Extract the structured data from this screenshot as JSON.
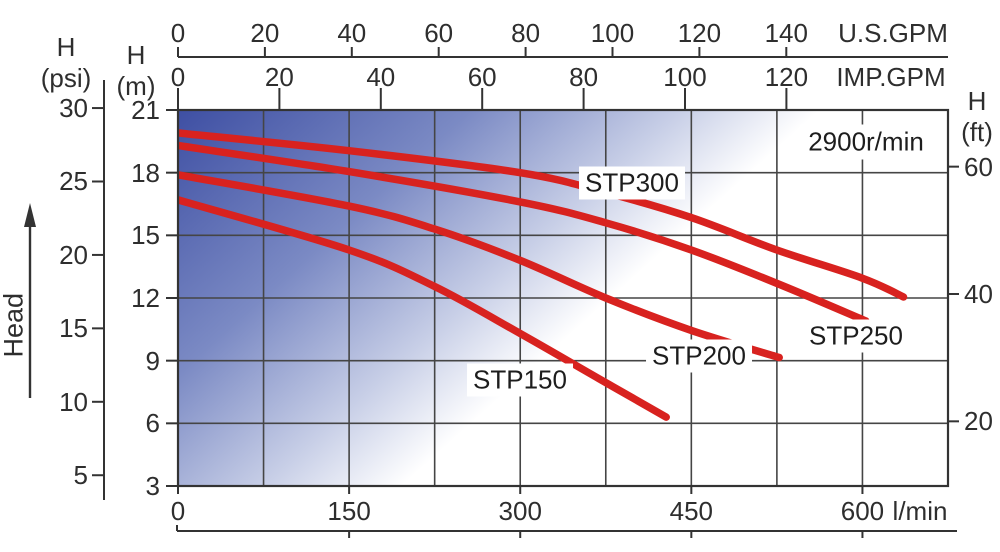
{
  "annotation": {
    "speed": "2900r/min"
  },
  "axes": {
    "us_gpm": {
      "label": "U.S.GPM",
      "ticks": [
        0,
        20,
        40,
        60,
        80,
        100,
        120,
        140
      ]
    },
    "imp_gpm": {
      "label": "IMP.GPM",
      "ticks": [
        0,
        20,
        40,
        60,
        80,
        100,
        120
      ]
    },
    "flow_lmin": {
      "label": "l/min",
      "ticks": [
        0,
        150,
        300,
        450,
        600
      ]
    },
    "head_m": {
      "symbol": "H",
      "unit": "(m)",
      "ticks": [
        21,
        18,
        15,
        12,
        9,
        6,
        3
      ]
    },
    "head_psi": {
      "symbol": "H",
      "unit": "(psi)",
      "ticks": [
        30,
        25,
        20,
        15,
        10,
        5
      ]
    },
    "head_ft": {
      "symbol": "H",
      "unit": "(ft)",
      "ticks": [
        60,
        40,
        20
      ]
    },
    "head_arrow_label": "Head"
  },
  "chart_data": {
    "type": "line",
    "title": "",
    "annotations": [
      "2900r/min"
    ],
    "x_axis": {
      "unit": "l/min",
      "range": [
        0,
        675
      ],
      "ticks": [
        0,
        150,
        300,
        450,
        600
      ],
      "gridline_step": 75
    },
    "x_axis_secondary": [
      {
        "unit": "U.S.GPM",
        "ticks": [
          0,
          20,
          40,
          60,
          80,
          100,
          120,
          140
        ]
      },
      {
        "unit": "IMP.GPM",
        "ticks": [
          0,
          20,
          40,
          60,
          80,
          100,
          120
        ]
      }
    ],
    "y_axis": {
      "unit": "m",
      "range": [
        3,
        21
      ],
      "ticks": [
        21,
        18,
        15,
        12,
        9,
        6,
        3
      ],
      "gridline_step": 3
    },
    "y_axis_secondary": [
      {
        "unit": "psi",
        "ticks": [
          30,
          25,
          20,
          15,
          10,
          5
        ]
      },
      {
        "unit": "ft",
        "ticks": [
          60,
          40,
          20
        ]
      }
    ],
    "grid": true,
    "legend": "inline-labels",
    "curve_color": "#d8221f",
    "grid_color": "#454545",
    "background_gradient": [
      "#3e4fa3",
      "#7b8ac4",
      "#c8cfe7",
      "#ffffff"
    ],
    "series": [
      {
        "name": "STP150",
        "points_lmin_m": [
          [
            0,
            16.7
          ],
          [
            150,
            14.3
          ],
          [
            225,
            12.55
          ],
          [
            300,
            10.3
          ],
          [
            375,
            7.95
          ],
          [
            428,
            6.3
          ]
        ]
      },
      {
        "name": "STP200",
        "points_lmin_m": [
          [
            0,
            17.9
          ],
          [
            150,
            16.4
          ],
          [
            225,
            15.3
          ],
          [
            300,
            13.8
          ],
          [
            375,
            12.0
          ],
          [
            450,
            10.45
          ],
          [
            527,
            9.15
          ]
        ]
      },
      {
        "name": "STP250",
        "points_lmin_m": [
          [
            0,
            19.3
          ],
          [
            150,
            18.05
          ],
          [
            300,
            16.6
          ],
          [
            375,
            15.6
          ],
          [
            450,
            14.3
          ],
          [
            525,
            12.7
          ],
          [
            603,
            10.9
          ]
        ]
      },
      {
        "name": "STP300",
        "points_lmin_m": [
          [
            0,
            19.9
          ],
          [
            150,
            19.05
          ],
          [
            300,
            18.0
          ],
          [
            375,
            17.05
          ],
          [
            450,
            15.85
          ],
          [
            525,
            14.3
          ],
          [
            600,
            12.95
          ],
          [
            636,
            12.05
          ]
        ]
      }
    ]
  }
}
